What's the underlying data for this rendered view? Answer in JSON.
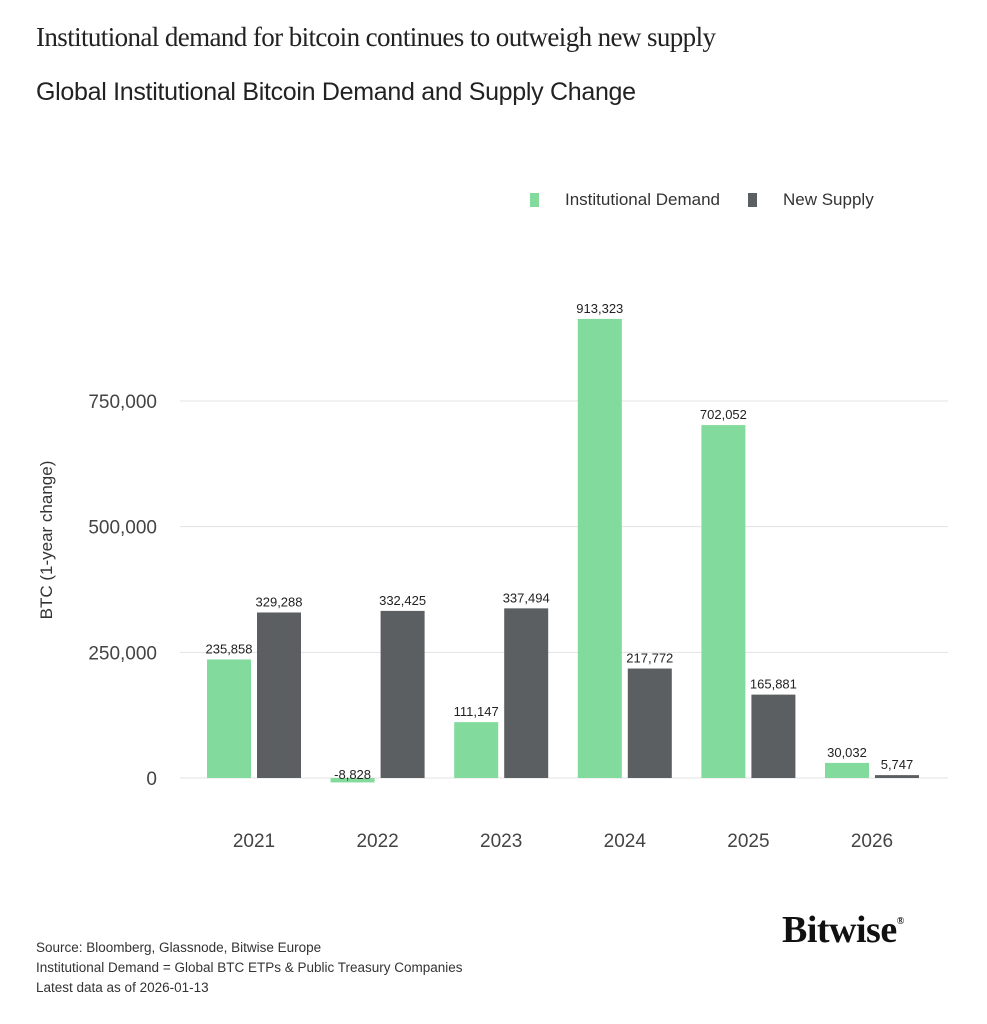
{
  "headline": "Institutional demand for bitcoin continues to outweigh new supply",
  "chart_data": {
    "type": "bar",
    "title": "Global Institutional Bitcoin Demand and Supply Change",
    "ylabel": "BTC (1-year change)",
    "xlabel": "",
    "categories": [
      "2021",
      "2022",
      "2023",
      "2024",
      "2025",
      "2026"
    ],
    "series": [
      {
        "name": "Institutional Demand",
        "color": "#82da9c",
        "values": [
          235858,
          -8828,
          111147,
          913323,
          702052,
          30032
        ],
        "labels": [
          "235,858",
          "-8,828",
          "111,147",
          "913,323",
          "702,052",
          "30,032"
        ]
      },
      {
        "name": "New Supply",
        "color": "#5c5f61",
        "values": [
          329288,
          332425,
          337494,
          217772,
          165881,
          5747
        ],
        "labels": [
          "329,288",
          "332,425",
          "337,494",
          "217,772",
          "165,881",
          "5,747"
        ]
      }
    ],
    "yticks": [
      0,
      250000,
      500000,
      750000
    ],
    "ytick_labels": [
      "0",
      "250,000",
      "500,000",
      "750,000"
    ],
    "ylim": [
      -20000,
      950000
    ],
    "grid": true,
    "legend": "top-right"
  },
  "footer": {
    "source": "Source: Bloomberg, Glassnode, Bitwise Europe",
    "definition": "Institutional Demand = Global BTC ETPs & Public Treasury Companies",
    "latest": "Latest data as of 2026-01-13"
  },
  "logo": "Bitwise"
}
